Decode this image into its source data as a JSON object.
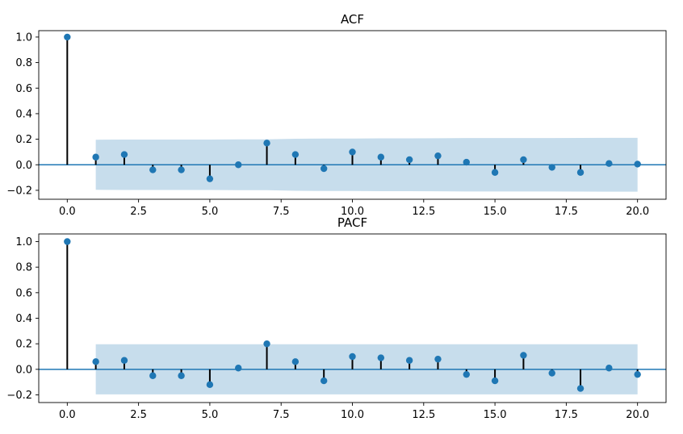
{
  "chart_data": [
    {
      "type": "stem",
      "title": "ACF",
      "x": [
        0,
        1,
        2,
        3,
        4,
        5,
        6,
        7,
        8,
        9,
        10,
        11,
        12,
        13,
        14,
        15,
        16,
        17,
        18,
        19,
        20
      ],
      "values": [
        1.0,
        0.06,
        0.08,
        -0.04,
        -0.04,
        -0.11,
        0.0,
        0.17,
        0.08,
        -0.03,
        0.1,
        0.06,
        0.04,
        0.07,
        0.02,
        -0.06,
        0.04,
        -0.02,
        -0.06,
        0.01,
        0.005
      ],
      "confidence_band": {
        "x": [
          1,
          2,
          3,
          4,
          5,
          6,
          7,
          8,
          9,
          10,
          11,
          12,
          13,
          14,
          15,
          16,
          17,
          18,
          19,
          20
        ],
        "upper": [
          0.196,
          0.197,
          0.197,
          0.197,
          0.197,
          0.199,
          0.199,
          0.204,
          0.205,
          0.205,
          0.207,
          0.207,
          0.208,
          0.209,
          0.209,
          0.209,
          0.209,
          0.21,
          0.211,
          0.211
        ],
        "lower": [
          -0.196,
          -0.197,
          -0.197,
          -0.197,
          -0.197,
          -0.199,
          -0.199,
          -0.204,
          -0.205,
          -0.205,
          -0.207,
          -0.207,
          -0.208,
          -0.209,
          -0.209,
          -0.209,
          -0.209,
          -0.21,
          -0.211,
          -0.211
        ]
      },
      "xlim": [
        -1,
        21
      ],
      "ylim": [
        -0.27,
        1.05
      ],
      "xticks": [
        0,
        2.5,
        5,
        7.5,
        10,
        12.5,
        15,
        17.5,
        20
      ],
      "xtick_labels": [
        "0.0",
        "2.5",
        "5.0",
        "7.5",
        "10.0",
        "12.5",
        "15.0",
        "17.5",
        "20.0"
      ],
      "yticks": [
        -0.2,
        0,
        0.2,
        0.4,
        0.6,
        0.8,
        1.0
      ],
      "ytick_labels": [
        "−0.2",
        "0.0",
        "0.2",
        "0.4",
        "0.6",
        "0.8",
        "1.0"
      ],
      "xlabel": "",
      "ylabel": "",
      "grid": false
    },
    {
      "type": "stem",
      "title": "PACF",
      "x": [
        0,
        1,
        2,
        3,
        4,
        5,
        6,
        7,
        8,
        9,
        10,
        11,
        12,
        13,
        14,
        15,
        16,
        17,
        18,
        19,
        20
      ],
      "values": [
        1.0,
        0.06,
        0.07,
        -0.05,
        -0.05,
        -0.12,
        0.01,
        0.2,
        0.06,
        -0.09,
        0.1,
        0.09,
        0.07,
        0.08,
        -0.04,
        -0.09,
        0.11,
        -0.03,
        -0.15,
        0.01,
        -0.04
      ],
      "confidence_band": {
        "x": [
          1,
          2,
          3,
          4,
          5,
          6,
          7,
          8,
          9,
          10,
          11,
          12,
          13,
          14,
          15,
          16,
          17,
          18,
          19,
          20
        ],
        "upper": [
          0.196,
          0.196,
          0.196,
          0.196,
          0.196,
          0.196,
          0.196,
          0.196,
          0.196,
          0.196,
          0.196,
          0.196,
          0.196,
          0.196,
          0.196,
          0.196,
          0.196,
          0.196,
          0.196,
          0.196
        ],
        "lower": [
          -0.196,
          -0.196,
          -0.196,
          -0.196,
          -0.196,
          -0.196,
          -0.196,
          -0.196,
          -0.196,
          -0.196,
          -0.196,
          -0.196,
          -0.196,
          -0.196,
          -0.196,
          -0.196,
          -0.196,
          -0.196,
          -0.196,
          -0.196
        ]
      },
      "xlim": [
        -1,
        21
      ],
      "ylim": [
        -0.26,
        1.06
      ],
      "xticks": [
        0,
        2.5,
        5,
        7.5,
        10,
        12.5,
        15,
        17.5,
        20
      ],
      "xtick_labels": [
        "0.0",
        "2.5",
        "5.0",
        "7.5",
        "10.0",
        "12.5",
        "15.0",
        "17.5",
        "20.0"
      ],
      "yticks": [
        -0.2,
        0,
        0.2,
        0.4,
        0.6,
        0.8,
        1.0
      ],
      "ytick_labels": [
        "−0.2",
        "0.0",
        "0.2",
        "0.4",
        "0.6",
        "0.8",
        "1.0"
      ],
      "xlabel": "",
      "ylabel": "",
      "grid": false
    }
  ],
  "colors": {
    "marker": "#1f77b4",
    "stem": "#000000",
    "band": "#1f77b4",
    "zero_line": "#1f77b4",
    "axes": "#000000"
  }
}
